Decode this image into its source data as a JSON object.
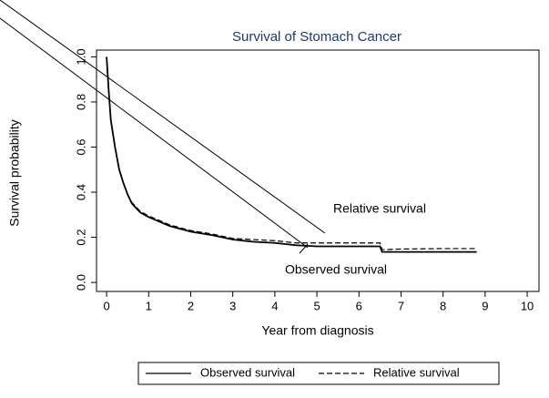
{
  "chart_data": {
    "type": "line",
    "title": "Survival of Stomach Cancer",
    "x_label": "Year from diagnosis",
    "y_label": "Survival probability",
    "x": [
      0,
      0.05,
      0.1,
      0.2,
      0.3,
      0.4,
      0.5,
      0.6,
      0.8,
      1,
      1.5,
      2,
      2.5,
      3,
      3.5,
      4,
      4.5,
      5,
      5.5,
      6,
      6.5,
      6.55,
      7,
      8,
      8.8
    ],
    "series": [
      {
        "name": "Observed survival",
        "color": "#000000",
        "line_style": "solid",
        "values": [
          1.0,
          0.85,
          0.72,
          0.6,
          0.5,
          0.44,
          0.39,
          0.35,
          0.31,
          0.29,
          0.25,
          0.225,
          0.21,
          0.19,
          0.18,
          0.175,
          0.165,
          0.16,
          0.16,
          0.16,
          0.16,
          0.135,
          0.135,
          0.135,
          0.135
        ]
      },
      {
        "name": "Relative survival",
        "color": "#000000",
        "line_style": "dashed",
        "values": [
          1.0,
          0.85,
          0.72,
          0.6,
          0.5,
          0.44,
          0.39,
          0.355,
          0.315,
          0.295,
          0.255,
          0.23,
          0.215,
          0.195,
          0.19,
          0.185,
          0.175,
          0.175,
          0.175,
          0.175,
          0.175,
          0.145,
          0.148,
          0.15,
          0.15
        ]
      }
    ],
    "annotations": [
      "Relative survival",
      "Observed survival"
    ],
    "xlim": [
      -0.24,
      10.28
    ],
    "ylim": [
      -0.04,
      1.03
    ],
    "xticks": [
      0,
      1,
      2,
      3,
      4,
      5,
      6,
      7,
      8,
      9,
      10
    ],
    "yticks": [
      {
        "value": 0,
        "label": "0.0"
      },
      0.2,
      0.4,
      0.6,
      0.8,
      {
        "value": 1,
        "label": "1.0"
      }
    ],
    "grid": false,
    "legend": "bottom"
  }
}
